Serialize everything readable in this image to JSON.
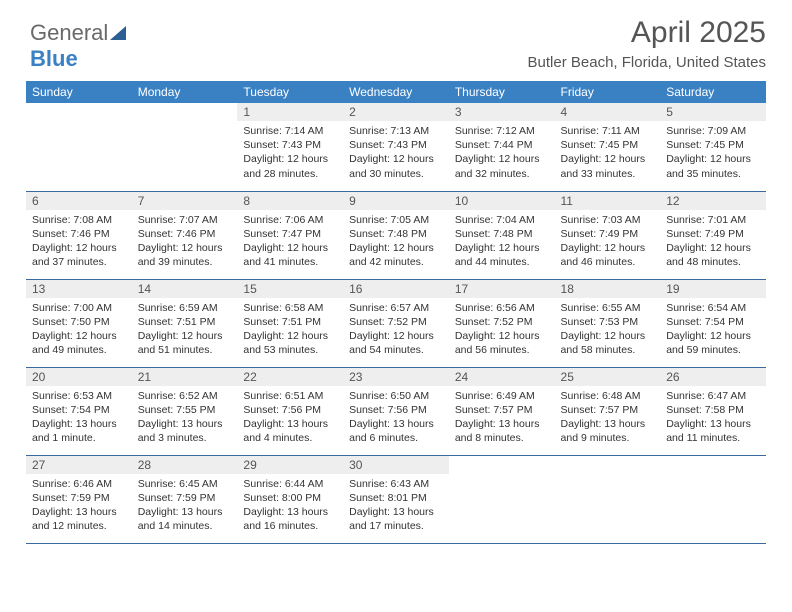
{
  "logo": {
    "text1": "General",
    "text2": "Blue"
  },
  "title": "April 2025",
  "subtitle": "Butler Beach, Florida, United States",
  "colors": {
    "header_bg": "#3a81c4",
    "header_text": "#ffffff",
    "daynum_bg": "#eeeeee",
    "row_border": "#3a6a9a",
    "title_color": "#555555",
    "body_text": "#333333"
  },
  "dow": [
    "Sunday",
    "Monday",
    "Tuesday",
    "Wednesday",
    "Thursday",
    "Friday",
    "Saturday"
  ],
  "weeks": [
    [
      null,
      null,
      {
        "n": "1",
        "sr": "7:14 AM",
        "ss": "7:43 PM",
        "dl": "12 hours and 28 minutes."
      },
      {
        "n": "2",
        "sr": "7:13 AM",
        "ss": "7:43 PM",
        "dl": "12 hours and 30 minutes."
      },
      {
        "n": "3",
        "sr": "7:12 AM",
        "ss": "7:44 PM",
        "dl": "12 hours and 32 minutes."
      },
      {
        "n": "4",
        "sr": "7:11 AM",
        "ss": "7:45 PM",
        "dl": "12 hours and 33 minutes."
      },
      {
        "n": "5",
        "sr": "7:09 AM",
        "ss": "7:45 PM",
        "dl": "12 hours and 35 minutes."
      }
    ],
    [
      {
        "n": "6",
        "sr": "7:08 AM",
        "ss": "7:46 PM",
        "dl": "12 hours and 37 minutes."
      },
      {
        "n": "7",
        "sr": "7:07 AM",
        "ss": "7:46 PM",
        "dl": "12 hours and 39 minutes."
      },
      {
        "n": "8",
        "sr": "7:06 AM",
        "ss": "7:47 PM",
        "dl": "12 hours and 41 minutes."
      },
      {
        "n": "9",
        "sr": "7:05 AM",
        "ss": "7:48 PM",
        "dl": "12 hours and 42 minutes."
      },
      {
        "n": "10",
        "sr": "7:04 AM",
        "ss": "7:48 PM",
        "dl": "12 hours and 44 minutes."
      },
      {
        "n": "11",
        "sr": "7:03 AM",
        "ss": "7:49 PM",
        "dl": "12 hours and 46 minutes."
      },
      {
        "n": "12",
        "sr": "7:01 AM",
        "ss": "7:49 PM",
        "dl": "12 hours and 48 minutes."
      }
    ],
    [
      {
        "n": "13",
        "sr": "7:00 AM",
        "ss": "7:50 PM",
        "dl": "12 hours and 49 minutes."
      },
      {
        "n": "14",
        "sr": "6:59 AM",
        "ss": "7:51 PM",
        "dl": "12 hours and 51 minutes."
      },
      {
        "n": "15",
        "sr": "6:58 AM",
        "ss": "7:51 PM",
        "dl": "12 hours and 53 minutes."
      },
      {
        "n": "16",
        "sr": "6:57 AM",
        "ss": "7:52 PM",
        "dl": "12 hours and 54 minutes."
      },
      {
        "n": "17",
        "sr": "6:56 AM",
        "ss": "7:52 PM",
        "dl": "12 hours and 56 minutes."
      },
      {
        "n": "18",
        "sr": "6:55 AM",
        "ss": "7:53 PM",
        "dl": "12 hours and 58 minutes."
      },
      {
        "n": "19",
        "sr": "6:54 AM",
        "ss": "7:54 PM",
        "dl": "12 hours and 59 minutes."
      }
    ],
    [
      {
        "n": "20",
        "sr": "6:53 AM",
        "ss": "7:54 PM",
        "dl": "13 hours and 1 minute."
      },
      {
        "n": "21",
        "sr": "6:52 AM",
        "ss": "7:55 PM",
        "dl": "13 hours and 3 minutes."
      },
      {
        "n": "22",
        "sr": "6:51 AM",
        "ss": "7:56 PM",
        "dl": "13 hours and 4 minutes."
      },
      {
        "n": "23",
        "sr": "6:50 AM",
        "ss": "7:56 PM",
        "dl": "13 hours and 6 minutes."
      },
      {
        "n": "24",
        "sr": "6:49 AM",
        "ss": "7:57 PM",
        "dl": "13 hours and 8 minutes."
      },
      {
        "n": "25",
        "sr": "6:48 AM",
        "ss": "7:57 PM",
        "dl": "13 hours and 9 minutes."
      },
      {
        "n": "26",
        "sr": "6:47 AM",
        "ss": "7:58 PM",
        "dl": "13 hours and 11 minutes."
      }
    ],
    [
      {
        "n": "27",
        "sr": "6:46 AM",
        "ss": "7:59 PM",
        "dl": "13 hours and 12 minutes."
      },
      {
        "n": "28",
        "sr": "6:45 AM",
        "ss": "7:59 PM",
        "dl": "13 hours and 14 minutes."
      },
      {
        "n": "29",
        "sr": "6:44 AM",
        "ss": "8:00 PM",
        "dl": "13 hours and 16 minutes."
      },
      {
        "n": "30",
        "sr": "6:43 AM",
        "ss": "8:01 PM",
        "dl": "13 hours and 17 minutes."
      },
      null,
      null,
      null
    ]
  ],
  "labels": {
    "sunrise": "Sunrise: ",
    "sunset": "Sunset: ",
    "daylight": "Daylight: "
  }
}
